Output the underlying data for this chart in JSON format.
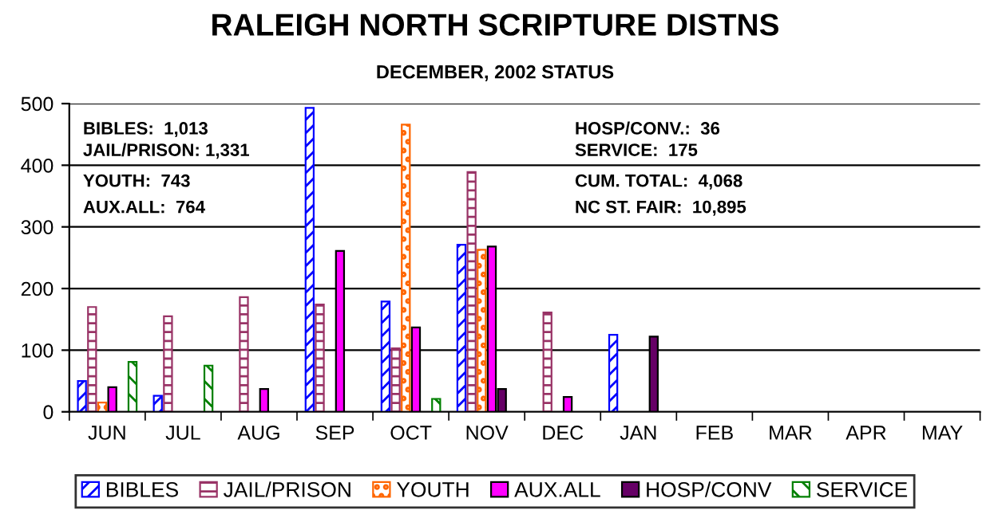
{
  "chart_data": {
    "type": "bar",
    "title": "RALEIGH NORTH SCRIPTURE DISTNS",
    "subtitle": "DECEMBER, 2002 STATUS",
    "categories": [
      "JUN",
      "JUL",
      "AUG",
      "SEP",
      "OCT",
      "NOV",
      "DEC",
      "JAN",
      "FEB",
      "MAR",
      "APR",
      "MAY"
    ],
    "series": [
      {
        "name": "BIBLES",
        "color": "#0000ff",
        "values": [
          50,
          26,
          null,
          493,
          179,
          271,
          null,
          125,
          null,
          null,
          null,
          null
        ]
      },
      {
        "name": "JAIL/PRISON",
        "color": "#993366",
        "values": [
          170,
          155,
          186,
          174,
          103,
          389,
          161,
          null,
          null,
          null,
          null,
          null
        ]
      },
      {
        "name": "YOUTH",
        "color": "#ff6600",
        "values": [
          15,
          null,
          null,
          null,
          466,
          263,
          null,
          null,
          null,
          null,
          null,
          null
        ]
      },
      {
        "name": "AUX.ALL",
        "color": "#ff00ff",
        "values": [
          40,
          null,
          37,
          261,
          137,
          268,
          24,
          null,
          null,
          null,
          null,
          null
        ]
      },
      {
        "name": "HOSP/CONV",
        "color": "#660066",
        "values": [
          null,
          null,
          null,
          null,
          null,
          37,
          null,
          122,
          null,
          null,
          null,
          null
        ]
      },
      {
        "name": "SERVICE",
        "color": "#008000",
        "values": [
          81,
          75,
          null,
          null,
          21,
          null,
          null,
          null,
          null,
          null,
          null,
          null
        ]
      }
    ],
    "ylim": [
      0,
      500
    ],
    "yticks": [
      0,
      100,
      200,
      300,
      400,
      500
    ],
    "grid": "y",
    "legend": "bottom",
    "annotations": [
      "BIBLES:  1,013",
      "JAIL/PRISON: 1,331",
      "YOUTH:  743",
      "AUX.ALL:  764",
      "HOSP/CONV.:  36",
      "SERVICE:  175",
      "CUM. TOTAL:  4,068",
      "NC ST. FAIR:  10,895"
    ]
  }
}
